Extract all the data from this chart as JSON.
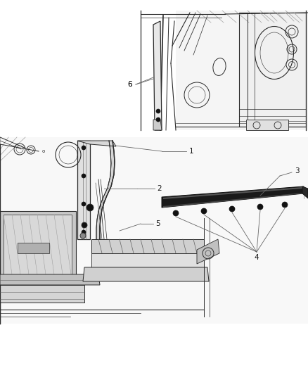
{
  "background_color": "#ffffff",
  "fig_width": 4.38,
  "fig_height": 5.33,
  "dpi": 100,
  "line_color": "#2a2a2a",
  "gray_light": "#d0d0d0",
  "gray_mid": "#a0a0a0",
  "gray_dark": "#606060",
  "dark": "#111111",
  "callout_color": "#666666",
  "label_color": "#1a1a1a",
  "label_fontsize": 7.5,
  "callout_lw": 0.6,
  "draw_lw": 0.7
}
